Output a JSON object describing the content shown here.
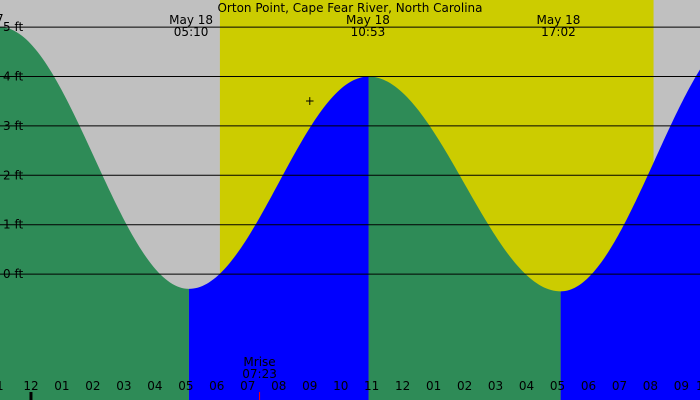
{
  "title": "Orton Point, Cape Fear River, North Carolina",
  "colors": {
    "night_background": "#c0c0c0",
    "day_background": "#cccc00",
    "falling_tide": "#2e8b57",
    "rising_tide": "#0000ff",
    "grid_line": "#000000",
    "moonrise_tick": "#ff0000"
  },
  "chart_data": {
    "type": "area",
    "title": "Orton Point, Cape Fear River, North Carolina",
    "y_unit": "ft",
    "y_ticks": [
      {
        "value": 5,
        "label": "5 ft"
      },
      {
        "value": 4,
        "label": "4 ft"
      },
      {
        "value": 3,
        "label": "3 ft"
      },
      {
        "value": 2,
        "label": "2 ft"
      },
      {
        "value": 1,
        "label": "1 ft"
      },
      {
        "value": 0,
        "label": "0 ft"
      }
    ],
    "ylim": [
      -2.55,
      5.55
    ],
    "xlim_hours": [
      -1.0,
      21.6
    ],
    "x_ticks": [
      {
        "hour": 0,
        "label": "12"
      },
      {
        "hour": 1,
        "label": "01"
      },
      {
        "hour": 2,
        "label": "02"
      },
      {
        "hour": 3,
        "label": "03"
      },
      {
        "hour": 4,
        "label": "04"
      },
      {
        "hour": 5,
        "label": "05"
      },
      {
        "hour": 6,
        "label": "06"
      },
      {
        "hour": 7,
        "label": "07"
      },
      {
        "hour": 8,
        "label": "08"
      },
      {
        "hour": 9,
        "label": "09"
      },
      {
        "hour": 10,
        "label": "10"
      },
      {
        "hour": 11,
        "label": "11"
      },
      {
        "hour": 12,
        "label": "12"
      },
      {
        "hour": 13,
        "label": "01"
      },
      {
        "hour": 14,
        "label": "02"
      },
      {
        "hour": 15,
        "label": "03"
      },
      {
        "hour": 16,
        "label": "04"
      },
      {
        "hour": 17,
        "label": "05"
      },
      {
        "hour": 18,
        "label": "06"
      },
      {
        "hour": 19,
        "label": "07"
      },
      {
        "hour": 20,
        "label": "08"
      },
      {
        "hour": 21,
        "label": "09"
      }
    ],
    "clipped_edge_labels": [
      "7",
      "1",
      "1"
    ],
    "tide_extremes": [
      {
        "hour": -1.0,
        "height": 5.0,
        "type": "high"
      },
      {
        "hour": 5.1,
        "height": -0.3,
        "type": "low"
      },
      {
        "hour": 10.9,
        "height": 4.0,
        "type": "high"
      },
      {
        "hour": 17.1,
        "height": -0.35,
        "type": "low"
      },
      {
        "hour": 23.2,
        "height": 5.0,
        "type": "high"
      }
    ],
    "daylight": {
      "start_hour": 6.1,
      "end_hour": 20.1
    },
    "time_annotations": [
      {
        "date": "May 18",
        "time": "05:10",
        "hour": 5.17
      },
      {
        "date": "May 18",
        "time": "10:53",
        "hour": 10.88
      },
      {
        "date": "May 18",
        "time": "17:02",
        "hour": 17.03
      }
    ],
    "moonrise": {
      "label": "Mrise",
      "time": "07:23",
      "hour": 7.38
    },
    "marker": {
      "symbol": "+",
      "hour": 9.0,
      "height": 3.5
    },
    "midnight_hour": 0
  }
}
